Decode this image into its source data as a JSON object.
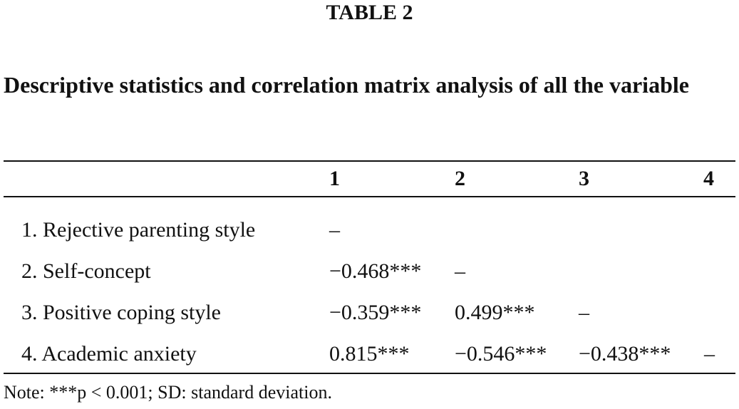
{
  "header": {
    "title": "TABLE 2",
    "caption": "Descriptive statistics and correlation matrix analysis of all the variable"
  },
  "table": {
    "columns": [
      "1",
      "2",
      "3",
      "4"
    ],
    "rows": [
      {
        "label": "1. Rejective parenting style",
        "cells": [
          "–"
        ]
      },
      {
        "label": "2. Self-concept",
        "cells": [
          "−0.468***",
          "–"
        ]
      },
      {
        "label": "3. Positive coping style",
        "cells": [
          "−0.359***",
          "0.499***",
          "–"
        ]
      },
      {
        "label": "4. Academic anxiety",
        "cells": [
          "0.815***",
          "−0.546***",
          "−0.438***",
          "–"
        ]
      }
    ]
  },
  "note": "Note: ***p < 0.001; SD: standard deviation."
}
